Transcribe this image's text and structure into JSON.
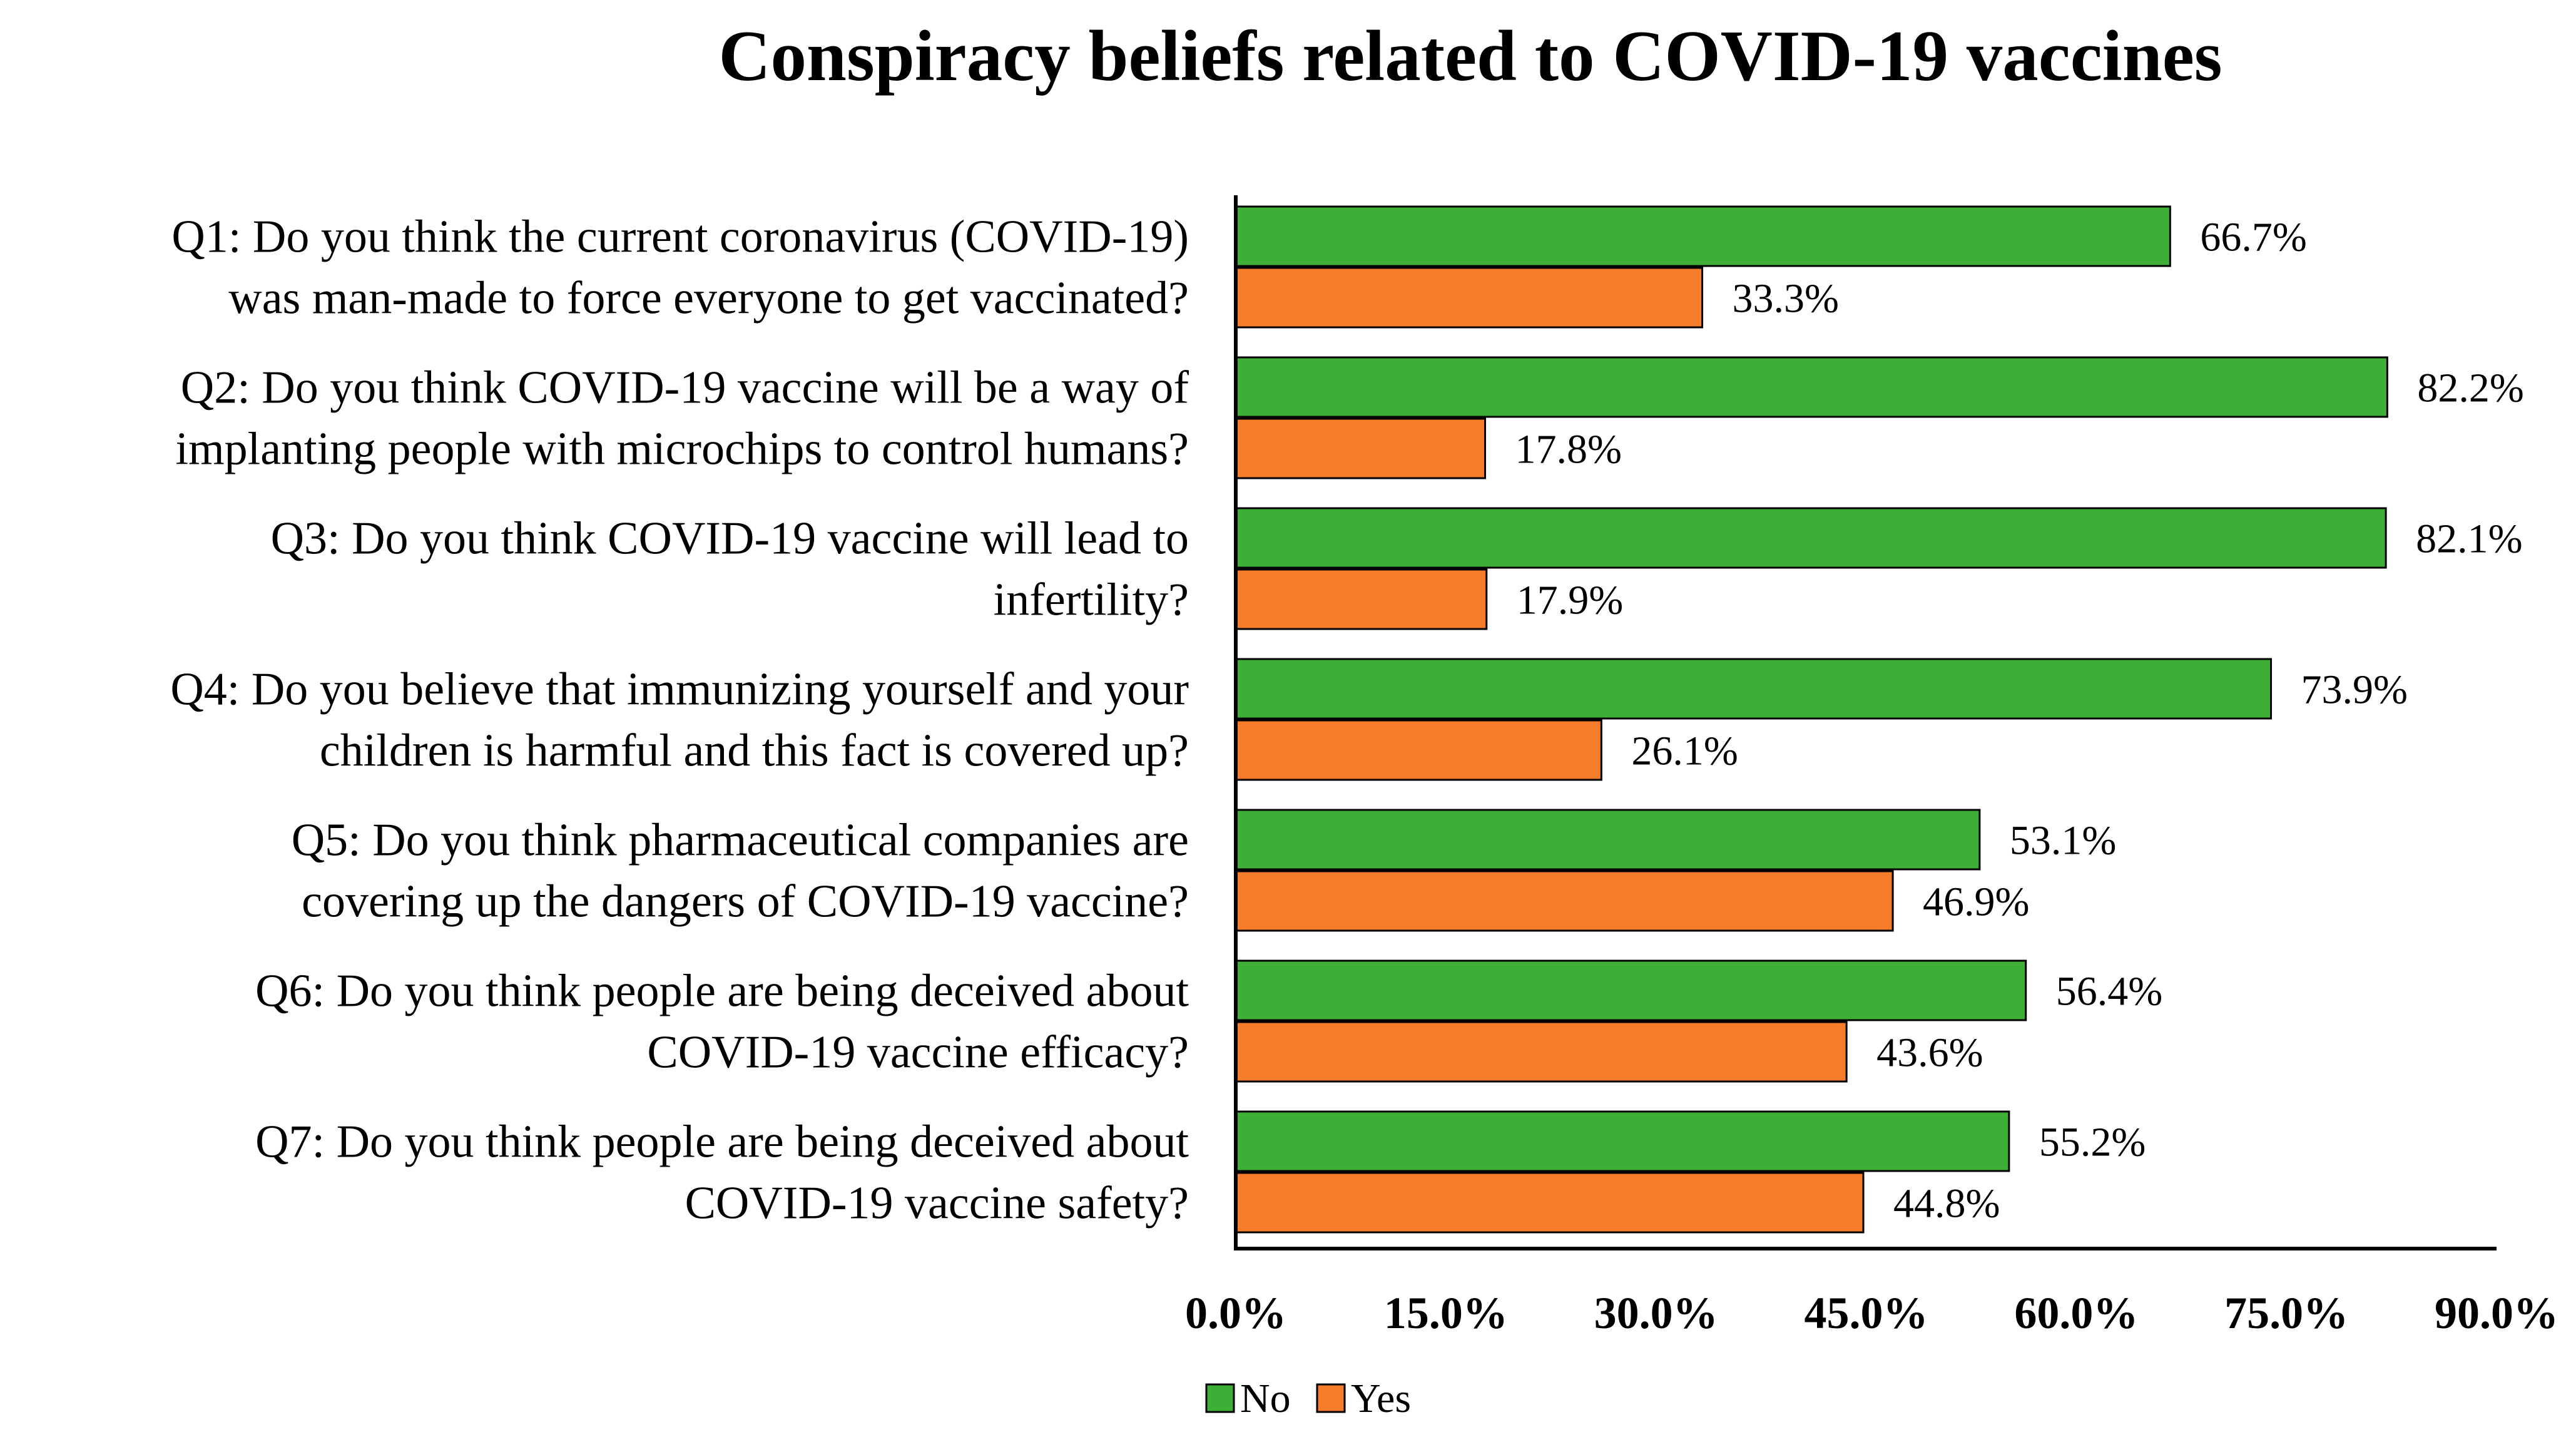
{
  "chart_data": {
    "type": "bar",
    "orientation": "horizontal",
    "title": "Conspiracy beliefs related to COVID-19 vaccines",
    "categories": [
      [
        "Q1: Do you think the current coronavirus (COVID-19)",
        "was man-made to force everyone to get vaccinated?"
      ],
      [
        "Q2: Do you think COVID-19 vaccine will be a way of",
        "implanting people with microchips to control humans?"
      ],
      [
        "Q3: Do you think COVID-19 vaccine will lead to",
        "infertility?"
      ],
      [
        "Q4: Do you believe that immunizing yourself and your",
        "children is harmful and this fact is covered up?"
      ],
      [
        "Q5: Do you think pharmaceutical companies are",
        "covering up the dangers of COVID-19 vaccine?"
      ],
      [
        "Q6: Do you think people are being deceived about",
        "COVID-19 vaccine efficacy?"
      ],
      [
        "Q7: Do you think people are being deceived about",
        "COVID-19 vaccine safety?"
      ]
    ],
    "series": [
      {
        "name": "No",
        "color": "#3fae37",
        "values": [
          66.7,
          82.2,
          82.1,
          73.9,
          53.1,
          56.4,
          55.2
        ],
        "labels": [
          "66.7%",
          "82.2%",
          "82.1%",
          "73.9%",
          "53.1%",
          "56.4%",
          "55.2%"
        ]
      },
      {
        "name": "Yes",
        "color": "#f47c2a",
        "values": [
          33.3,
          17.8,
          17.9,
          26.1,
          46.9,
          43.6,
          44.8
        ],
        "labels": [
          "33.3%",
          "17.8%",
          "17.9%",
          "26.1%",
          "46.9%",
          "43.6%",
          "44.8%"
        ]
      }
    ],
    "xlim": [
      0,
      90
    ],
    "xticks": [
      0,
      15,
      30,
      45,
      60,
      75,
      90
    ],
    "xtick_labels": [
      "0.0%",
      "15.0%",
      "30.0%",
      "45.0%",
      "60.0%",
      "75.0%",
      "90.0%"
    ],
    "xlabel": "",
    "ylabel": "",
    "grid": false,
    "legend": {
      "position": "bottom-center",
      "items": [
        "No",
        "Yes"
      ]
    }
  }
}
